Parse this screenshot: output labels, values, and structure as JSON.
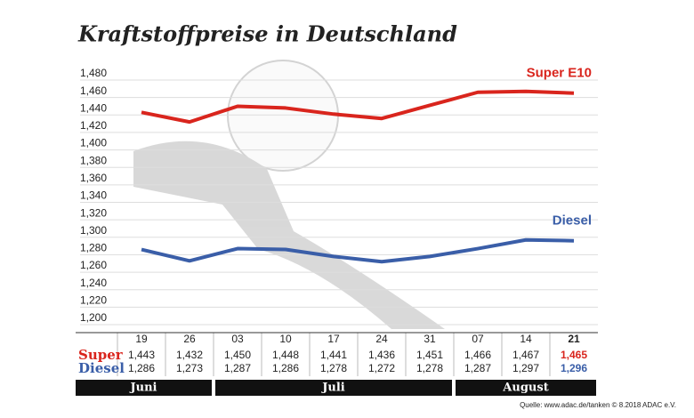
{
  "chart_data": {
    "type": "line",
    "title": "Kraftstoffpreise in Deutschland",
    "categories": [
      "19",
      "26",
      "03",
      "10",
      "17",
      "24",
      "31",
      "07",
      "14",
      "21"
    ],
    "months": [
      {
        "name": "Juni",
        "weeks": 2
      },
      {
        "name": "Juli",
        "weeks": 5
      },
      {
        "name": "August",
        "weeks": 3
      }
    ],
    "series": [
      {
        "name": "Super E10",
        "row_label": "Super",
        "color": "#d9251d",
        "values": [
          1.443,
          1.432,
          1.45,
          1.448,
          1.441,
          1.436,
          1.451,
          1.466,
          1.467,
          1.465
        ],
        "value_labels": [
          "1,443",
          "1,432",
          "1,450",
          "1,448",
          "1,441",
          "1,436",
          "1,451",
          "1,466",
          "1,467",
          "1,465"
        ]
      },
      {
        "name": "Diesel",
        "row_label": "Diesel",
        "color": "#3a5ea8",
        "values": [
          1.286,
          1.273,
          1.287,
          1.286,
          1.278,
          1.272,
          1.278,
          1.287,
          1.297,
          1.296
        ],
        "value_labels": [
          "1,286",
          "1,273",
          "1,287",
          "1,286",
          "1,278",
          "1,272",
          "1,278",
          "1,287",
          "1,297",
          "1,296"
        ]
      }
    ],
    "ylim": [
      1.2,
      1.48
    ],
    "yticks": [
      {
        "value": 1.2,
        "label": "1,200"
      },
      {
        "value": 1.22,
        "label": "1,220"
      },
      {
        "value": 1.24,
        "label": "1,240"
      },
      {
        "value": 1.26,
        "label": "1,260"
      },
      {
        "value": 1.28,
        "label": "1,280"
      },
      {
        "value": 1.3,
        "label": "1,300"
      },
      {
        "value": 1.32,
        "label": "1,320"
      },
      {
        "value": 1.34,
        "label": "1,340"
      },
      {
        "value": 1.36,
        "label": "1,360"
      },
      {
        "value": 1.38,
        "label": "1,380"
      },
      {
        "value": 1.4,
        "label": "1,400"
      },
      {
        "value": 1.42,
        "label": "1,420"
      },
      {
        "value": 1.44,
        "label": "1,440"
      },
      {
        "value": 1.46,
        "label": "1,460"
      },
      {
        "value": 1.48,
        "label": "1,480"
      }
    ],
    "grid": true,
    "source": "Quelle: www.adac.de/tanken  © 8.2018  ADAC e.V."
  }
}
